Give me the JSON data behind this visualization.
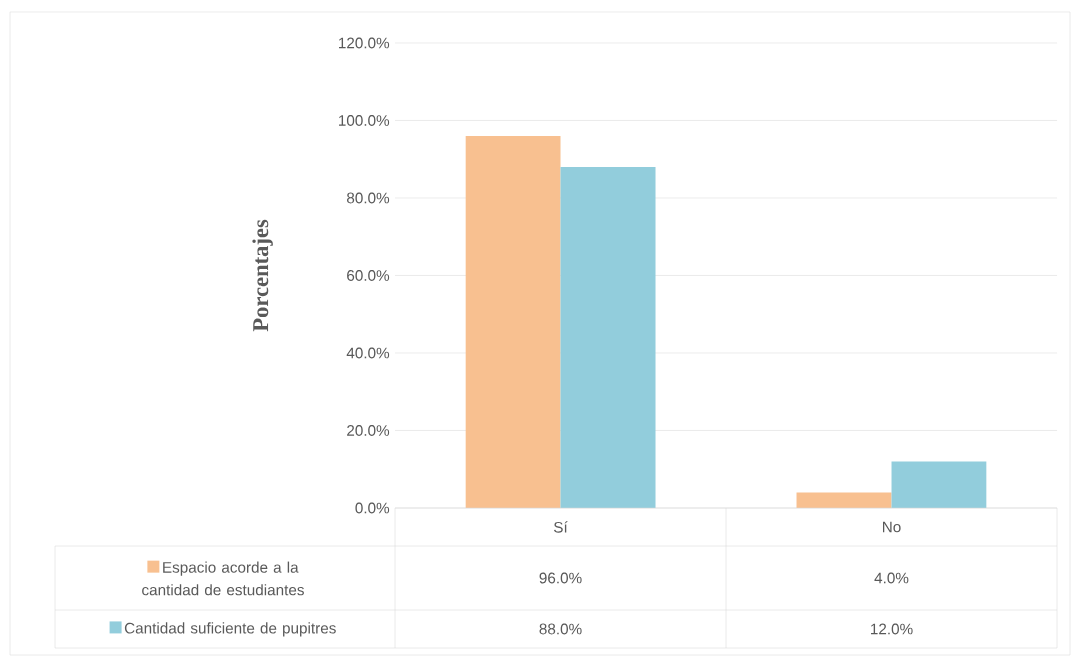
{
  "chart_data": {
    "type": "bar",
    "ylabel": "Porcentajes",
    "categories": [
      "Sí",
      "No"
    ],
    "series": [
      {
        "name": "Espacio acorde a la cantidad de estudiantes",
        "color": "#f8c090",
        "values": [
          96,
          4
        ],
        "value_labels": [
          "96.0%",
          "4.0%"
        ]
      },
      {
        "name": "Cantidad suficiente de pupitres",
        "color": "#92cddc",
        "values": [
          88,
          12
        ],
        "value_labels": [
          "88.0%",
          "12.0%"
        ]
      }
    ],
    "ylim": [
      0,
      120
    ],
    "yticks": [
      {
        "value": 0,
        "label": "0.0%"
      },
      {
        "value": 20,
        "label": "20.0%"
      },
      {
        "value": 40,
        "label": "40.0%"
      },
      {
        "value": 60,
        "label": "60.0%"
      },
      {
        "value": 80,
        "label": "80.0%"
      },
      {
        "value": 100,
        "label": "100.0%"
      },
      {
        "value": 120,
        "label": "120.0%"
      }
    ],
    "grid": "y",
    "legend": "bottom"
  }
}
